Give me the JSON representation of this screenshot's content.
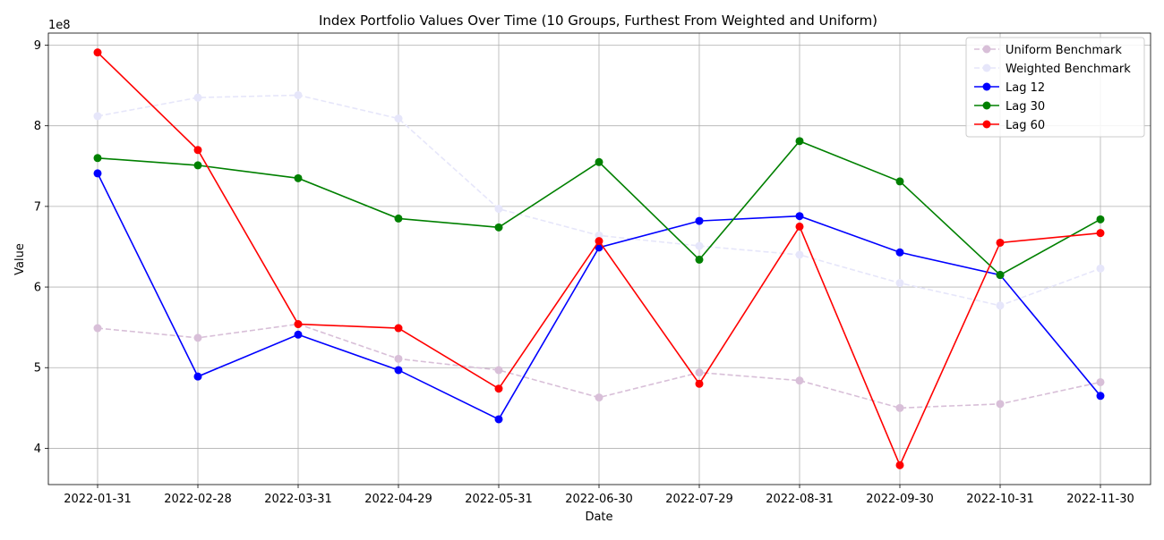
{
  "chart_data": {
    "type": "line",
    "title": "Index Portfolio Values Over Time (10 Groups, Furthest From Weighted and Uniform)",
    "xlabel": "Date",
    "ylabel": "Value",
    "y_multiplier_label": "1e8",
    "ylim": [
      3.55,
      9.15
    ],
    "yticks": [
      4,
      5,
      6,
      7,
      8,
      9
    ],
    "grid": true,
    "legend_position": "top-right",
    "categories": [
      "2022-01-31",
      "2022-02-28",
      "2022-03-31",
      "2022-04-29",
      "2022-05-31",
      "2022-06-30",
      "2022-07-29",
      "2022-08-31",
      "2022-09-30",
      "2022-10-31",
      "2022-11-30"
    ],
    "series": [
      {
        "name": "Uniform Benchmark",
        "color": "#d8bfd8",
        "dashed": true,
        "values": [
          5.49,
          5.37,
          5.54,
          5.11,
          4.97,
          4.63,
          4.94,
          4.84,
          4.5,
          4.55,
          4.82
        ]
      },
      {
        "name": "Weighted Benchmark",
        "color": "#e6e6fa",
        "dashed": true,
        "values": [
          8.12,
          8.35,
          8.38,
          8.09,
          6.97,
          6.64,
          6.51,
          6.4,
          6.05,
          5.77,
          6.23
        ]
      },
      {
        "name": "Lag 12",
        "color": "#0000ff",
        "dashed": false,
        "values": [
          7.41,
          4.89,
          5.41,
          4.97,
          4.36,
          6.49,
          6.82,
          6.88,
          6.43,
          6.15,
          4.65
        ]
      },
      {
        "name": "Lag 30",
        "color": "#008000",
        "dashed": false,
        "values": [
          7.6,
          7.51,
          7.35,
          6.85,
          6.74,
          7.55,
          6.34,
          7.81,
          7.31,
          6.15,
          6.84
        ]
      },
      {
        "name": "Lag 60",
        "color": "#ff0000",
        "dashed": false,
        "values": [
          8.91,
          7.7,
          5.54,
          5.49,
          4.74,
          6.57,
          4.8,
          6.75,
          3.79,
          6.55,
          6.67
        ]
      }
    ]
  }
}
